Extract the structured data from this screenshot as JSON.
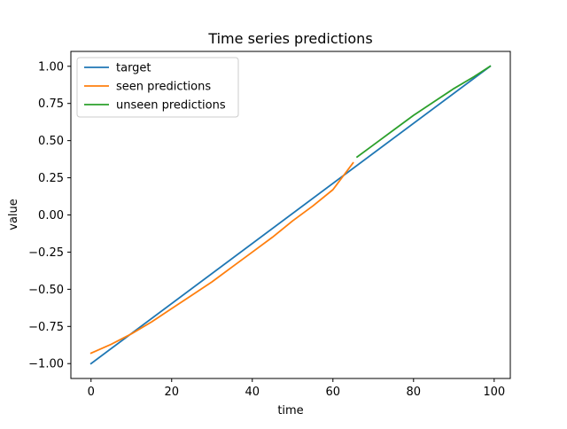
{
  "chart_data": {
    "type": "line",
    "title": "Time series predictions",
    "xlabel": "time",
    "ylabel": "value",
    "xlim": [
      -5,
      104
    ],
    "ylim": [
      -1.1,
      1.1
    ],
    "xticks": [
      0,
      20,
      40,
      60,
      80,
      100
    ],
    "yticks": [
      -1.0,
      -0.75,
      -0.5,
      -0.25,
      0.0,
      0.25,
      0.5,
      0.75,
      1.0
    ],
    "xtick_labels": [
      "0",
      "20",
      "40",
      "60",
      "80",
      "100"
    ],
    "ytick_labels": [
      "−1.00",
      "−0.75",
      "−0.50",
      "−0.25",
      "0.00",
      "0.25",
      "0.50",
      "0.75",
      "1.00"
    ],
    "grid": false,
    "legend_position": "top-left",
    "series": [
      {
        "name": "target",
        "color": "#1f77b4",
        "x": [
          0,
          99
        ],
        "y": [
          -1.0,
          1.0
        ]
      },
      {
        "name": "seen predictions",
        "color": "#ff7f0e",
        "x": [
          0,
          5,
          10,
          15,
          20,
          25,
          30,
          35,
          40,
          45,
          50,
          55,
          60,
          65
        ],
        "y": [
          -0.93,
          -0.87,
          -0.8,
          -0.72,
          -0.63,
          -0.54,
          -0.45,
          -0.35,
          -0.25,
          -0.15,
          -0.04,
          0.06,
          0.17,
          0.35
        ]
      },
      {
        "name": "unseen predictions",
        "color": "#2ca02c",
        "x": [
          66,
          70,
          75,
          80,
          85,
          90,
          95,
          99
        ],
        "y": [
          0.39,
          0.47,
          0.57,
          0.67,
          0.76,
          0.85,
          0.93,
          1.0
        ]
      }
    ]
  }
}
